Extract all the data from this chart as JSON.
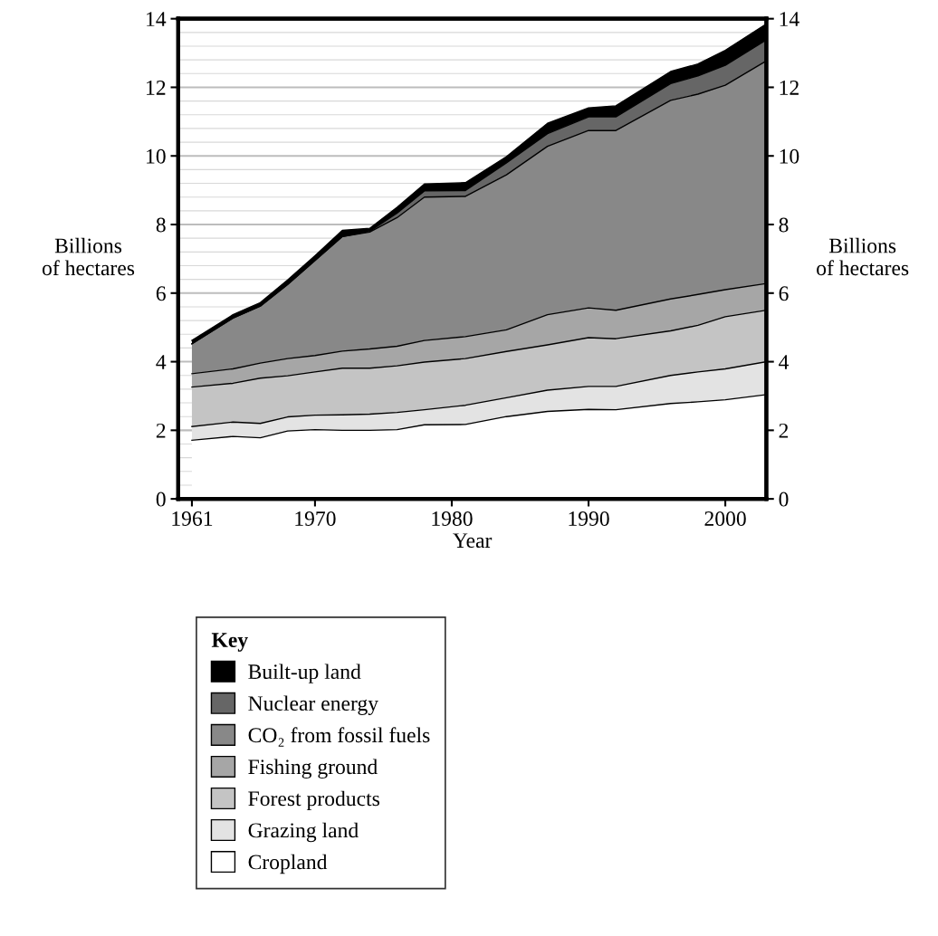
{
  "chart_data": {
    "type": "area",
    "stacked": true,
    "xlabel": "Year",
    "ylabel": "Billions\nof hectares",
    "y2label": "Billions\nof hectares",
    "legend_title": "Key",
    "legend": "bottom",
    "grid": true,
    "x": [
      1961,
      1964,
      1966,
      1968,
      1970,
      1972,
      1974,
      1976,
      1978,
      1981,
      1984,
      1987,
      1990,
      1992,
      1996,
      1998,
      2000,
      2003
    ],
    "xlim": [
      1960,
      2003
    ],
    "xticks": [
      1961,
      1970,
      1980,
      1990,
      2000
    ],
    "ylim": [
      0,
      14
    ],
    "yticks": [
      0,
      2,
      4,
      6,
      8,
      10,
      12,
      14
    ],
    "y2lim": [
      0,
      14
    ],
    "y2ticks": [
      0,
      2,
      4,
      6,
      8,
      10,
      12,
      14
    ],
    "series": [
      {
        "name": "Cropland",
        "color": "#ffffff",
        "values": [
          1.71,
          1.82,
          1.78,
          1.98,
          2.02,
          2.0,
          2.0,
          2.02,
          2.16,
          2.17,
          2.4,
          2.55,
          2.61,
          2.6,
          2.78,
          2.83,
          2.89,
          3.04
        ]
      },
      {
        "name": "Grazing land",
        "color": "#e3e3e3",
        "values": [
          0.4,
          0.42,
          0.42,
          0.41,
          0.42,
          0.45,
          0.47,
          0.5,
          0.44,
          0.56,
          0.55,
          0.62,
          0.67,
          0.68,
          0.82,
          0.87,
          0.9,
          0.96
        ]
      },
      {
        "name": "Forest products",
        "color": "#c4c4c4",
        "values": [
          1.15,
          1.13,
          1.32,
          1.2,
          1.26,
          1.36,
          1.34,
          1.36,
          1.39,
          1.36,
          1.35,
          1.32,
          1.42,
          1.39,
          1.3,
          1.36,
          1.52,
          1.5
        ]
      },
      {
        "name": "Fishing ground",
        "color": "#a6a6a6",
        "values": [
          0.39,
          0.42,
          0.44,
          0.5,
          0.48,
          0.5,
          0.56,
          0.57,
          0.63,
          0.64,
          0.63,
          0.88,
          0.87,
          0.83,
          0.93,
          0.9,
          0.79,
          0.78
        ]
      },
      {
        "name": "CO₂ from fossil fuels",
        "color": "#888888",
        "values": [
          0.87,
          1.48,
          1.66,
          2.16,
          2.77,
          3.34,
          3.41,
          3.75,
          4.18,
          4.09,
          4.52,
          4.91,
          5.17,
          5.24,
          5.79,
          5.84,
          5.96,
          6.49
        ]
      },
      {
        "name": "Nuclear energy",
        "color": "#666666",
        "values": [
          0,
          0,
          0,
          0,
          0,
          0,
          0.02,
          0.13,
          0.18,
          0.17,
          0.35,
          0.37,
          0.4,
          0.4,
          0.49,
          0.53,
          0.58,
          0.61
        ]
      },
      {
        "name": "Built-up land",
        "color": "#000000",
        "values": [
          0.1,
          0.1,
          0.1,
          0.13,
          0.14,
          0.18,
          0.09,
          0.17,
          0.2,
          0.23,
          0.18,
          0.3,
          0.26,
          0.32,
          0.35,
          0.35,
          0.44,
          0.47
        ]
      }
    ]
  }
}
